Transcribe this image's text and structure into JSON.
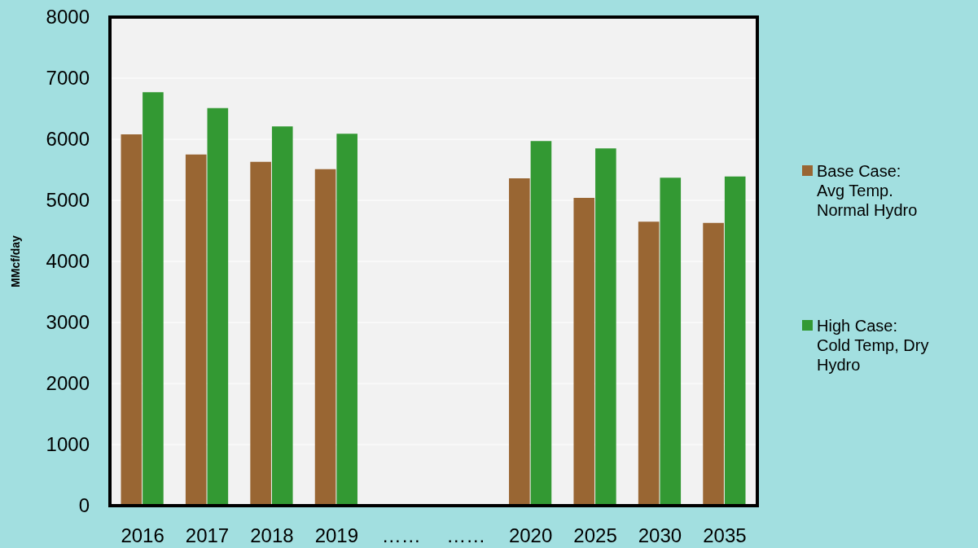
{
  "chart_data": {
    "type": "bar",
    "ylabel": "MMcf/day",
    "categories": [
      "2016",
      "2017",
      "2018",
      "2019",
      "……",
      "……",
      "2020",
      "2025",
      "2030",
      "2035"
    ],
    "series": [
      {
        "name": "Base Case:\nAvg Temp.\nNormal Hydro",
        "color": "#996633",
        "values": [
          6080,
          5750,
          5630,
          5510,
          null,
          null,
          5360,
          5040,
          4650,
          4630
        ]
      },
      {
        "name": "High Case:\nCold Temp, Dry\nHydro",
        "color": "#339933",
        "values": [
          6770,
          6510,
          6210,
          6090,
          null,
          null,
          5970,
          5850,
          5370,
          5390
        ]
      }
    ],
    "ylim": [
      0,
      8000
    ],
    "yticks": [
      0,
      1000,
      2000,
      3000,
      4000,
      5000,
      6000,
      7000,
      8000
    ],
    "grid": "y",
    "legend": "right"
  }
}
